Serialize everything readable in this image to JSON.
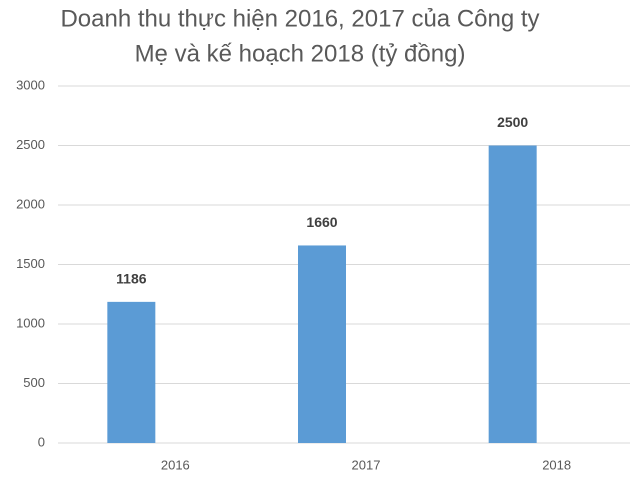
{
  "chart_data": {
    "type": "bar",
    "title": [
      "Doanh thu thực hiện 2016, 2017 của Công ty",
      "Mẹ  và kế hoạch 2018 (tỷ đồng)"
    ],
    "categories": [
      "2016",
      "2017",
      "2018"
    ],
    "values": [
      1186,
      1660,
      2500
    ],
    "color": "#5b9bd5",
    "ylim": [
      0,
      3000
    ],
    "yticks": [
      0,
      500,
      1000,
      1500,
      2000,
      2500,
      3000
    ],
    "grid": true
  }
}
